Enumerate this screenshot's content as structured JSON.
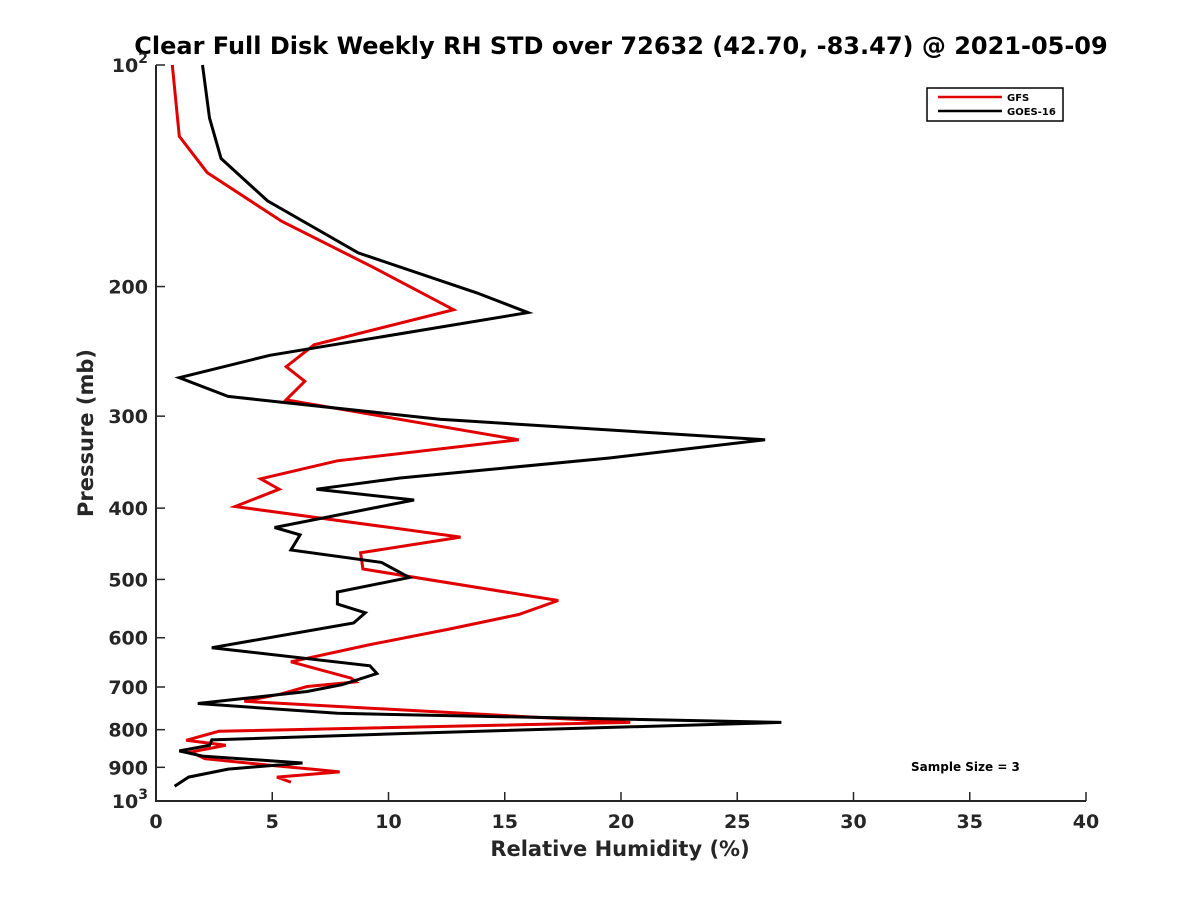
{
  "chart_data": {
    "type": "line",
    "title": "Clear Full Disk Weekly RH STD over 72632 (42.70, -83.47) @ 2021-05-09",
    "xlabel": "Relative Humidity (%)",
    "ylabel": "Pressure (mb)",
    "xlim": [
      0,
      40
    ],
    "ylim": [
      100,
      1000
    ],
    "yscale": "log",
    "y_reversed": true,
    "grid": false,
    "legend_position": "top-right",
    "x_ticks": [
      "0",
      "5",
      "10",
      "15",
      "20",
      "25",
      "30",
      "35",
      "40"
    ],
    "x_tick_values": [
      0,
      5,
      10,
      15,
      20,
      25,
      30,
      35,
      40
    ],
    "y_ticks": [
      {
        "value": 100,
        "label": "10",
        "sup": "2"
      },
      {
        "value": 200,
        "label": "200",
        "sup": ""
      },
      {
        "value": 300,
        "label": "300",
        "sup": ""
      },
      {
        "value": 400,
        "label": "400",
        "sup": ""
      },
      {
        "value": 500,
        "label": "500",
        "sup": ""
      },
      {
        "value": 600,
        "label": "600",
        "sup": ""
      },
      {
        "value": 700,
        "label": "700",
        "sup": ""
      },
      {
        "value": 800,
        "label": "800",
        "sup": ""
      },
      {
        "value": 900,
        "label": "900",
        "sup": ""
      },
      {
        "value": 1000,
        "label": "10",
        "sup": "3"
      }
    ],
    "annotation": "Sample Size = 3",
    "series": [
      {
        "name": "GFS",
        "color": "#e00000",
        "points": [
          [
            0.7,
            100
          ],
          [
            1.0,
            125
          ],
          [
            2.2,
            140
          ],
          [
            5.4,
            163
          ],
          [
            9.3,
            188
          ],
          [
            12.8,
            215
          ],
          [
            6.8,
            240
          ],
          [
            5.6,
            257
          ],
          [
            6.4,
            269
          ],
          [
            5.6,
            285
          ],
          [
            15.6,
            323
          ],
          [
            7.8,
            345
          ],
          [
            4.5,
            365
          ],
          [
            5.3,
            377
          ],
          [
            3.4,
            398
          ],
          [
            13.1,
            438
          ],
          [
            8.8,
            460
          ],
          [
            8.9,
            484
          ],
          [
            17.3,
            534
          ],
          [
            15.6,
            558
          ],
          [
            12.5,
            585
          ],
          [
            9.1,
            614
          ],
          [
            5.8,
            647
          ],
          [
            8.4,
            681
          ],
          [
            8.6,
            689
          ],
          [
            6.5,
            699
          ],
          [
            5.4,
            715
          ],
          [
            3.8,
            732
          ],
          [
            20.4,
            782
          ],
          [
            2.7,
            804
          ],
          [
            1.3,
            827
          ],
          [
            3.0,
            840
          ],
          [
            1.5,
            858
          ],
          [
            2.1,
            876
          ],
          [
            5.0,
            895
          ],
          [
            6.7,
            905
          ],
          [
            7.9,
            913
          ],
          [
            5.2,
            928
          ],
          [
            5.8,
            943
          ]
        ]
      },
      {
        "name": "GOES-16",
        "color": "#000000",
        "points": [
          [
            2.0,
            100
          ],
          [
            2.3,
            118
          ],
          [
            2.8,
            134
          ],
          [
            4.8,
            153
          ],
          [
            8.7,
            180
          ],
          [
            13.8,
            204
          ],
          [
            16.0,
            217
          ],
          [
            4.9,
            248
          ],
          [
            1.0,
            266
          ],
          [
            3.1,
            282
          ],
          [
            12.2,
            303
          ],
          [
            26.2,
            323
          ],
          [
            19.5,
            342
          ],
          [
            10.5,
            364
          ],
          [
            6.9,
            377
          ],
          [
            11.1,
            390
          ],
          [
            5.1,
            425
          ],
          [
            6.2,
            435
          ],
          [
            5.8,
            456
          ],
          [
            9.7,
            474
          ],
          [
            10.9,
            497
          ],
          [
            7.8,
            520
          ],
          [
            7.8,
            540
          ],
          [
            9.0,
            555
          ],
          [
            8.5,
            573
          ],
          [
            2.4,
            619
          ],
          [
            9.2,
            655
          ],
          [
            9.5,
            671
          ],
          [
            8.0,
            695
          ],
          [
            6.5,
            710
          ],
          [
            1.8,
            737
          ],
          [
            7.8,
            760
          ],
          [
            26.9,
            782
          ],
          [
            10.5,
            810
          ],
          [
            2.4,
            826
          ],
          [
            2.3,
            840
          ],
          [
            1.0,
            855
          ],
          [
            2.0,
            869
          ],
          [
            6.3,
            888
          ],
          [
            3.1,
            905
          ],
          [
            1.4,
            928
          ],
          [
            0.8,
            955
          ]
        ]
      }
    ]
  }
}
